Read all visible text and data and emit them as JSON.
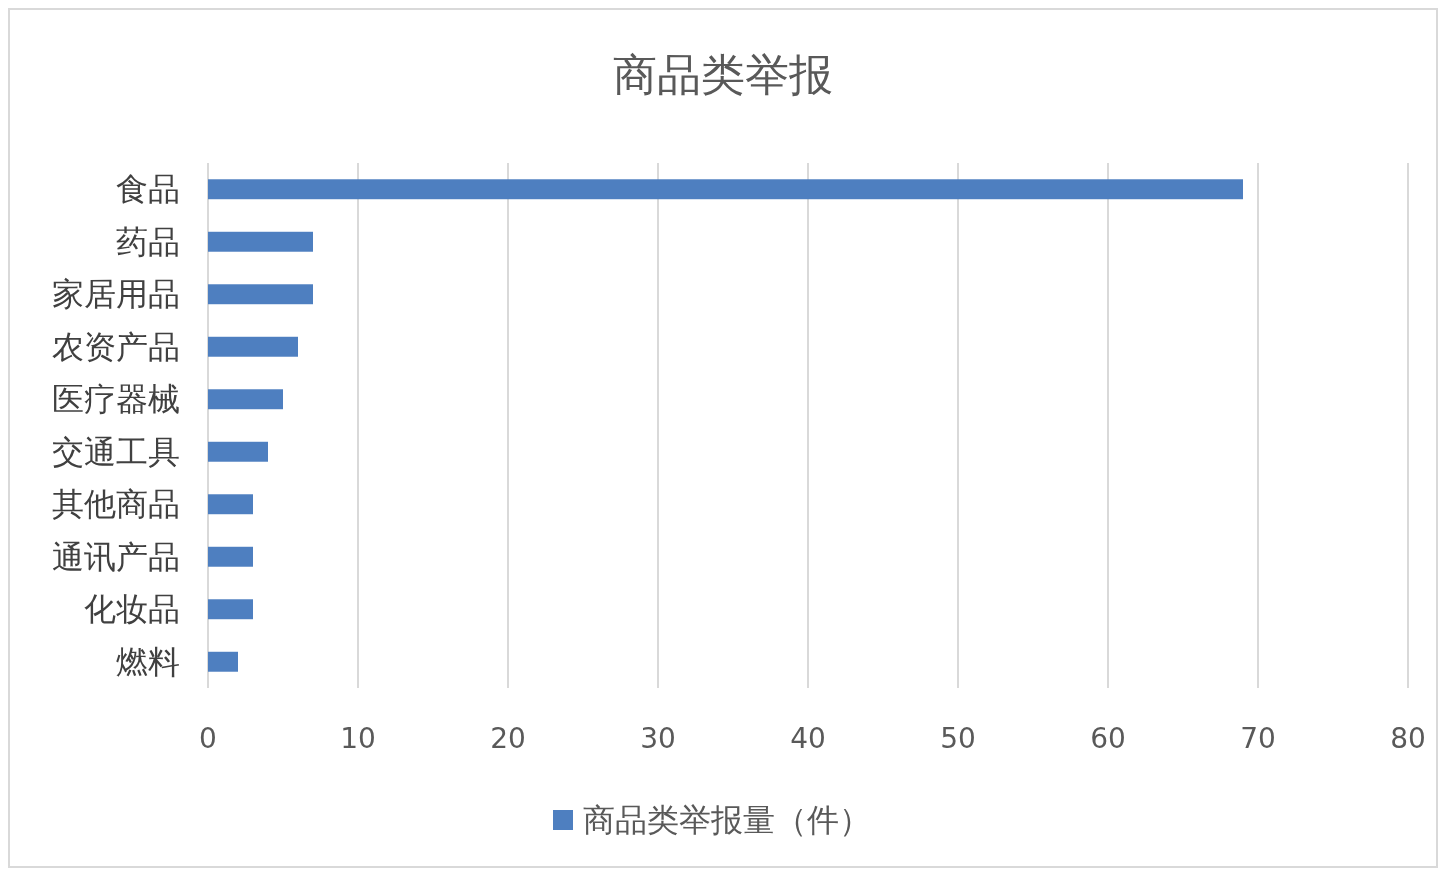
{
  "chart_data": {
    "type": "bar",
    "orientation": "horizontal",
    "title": "商品类举报",
    "categories": [
      "食品",
      "药品",
      "家居用品",
      "农资产品",
      "医疗器械",
      "交通工具",
      "其他商品",
      "通讯产品",
      "化妆品",
      "燃料"
    ],
    "series": [
      {
        "name": "商品类举报量（件）",
        "color": "#4e7fc0",
        "values": [
          69,
          7,
          7,
          6,
          5,
          4,
          3,
          3,
          3,
          2
        ]
      }
    ],
    "xlim": [
      0,
      80
    ],
    "xticks": [
      0,
      10,
      20,
      30,
      40,
      50,
      60,
      70,
      80
    ],
    "grid": "x",
    "legend": "bottom"
  }
}
